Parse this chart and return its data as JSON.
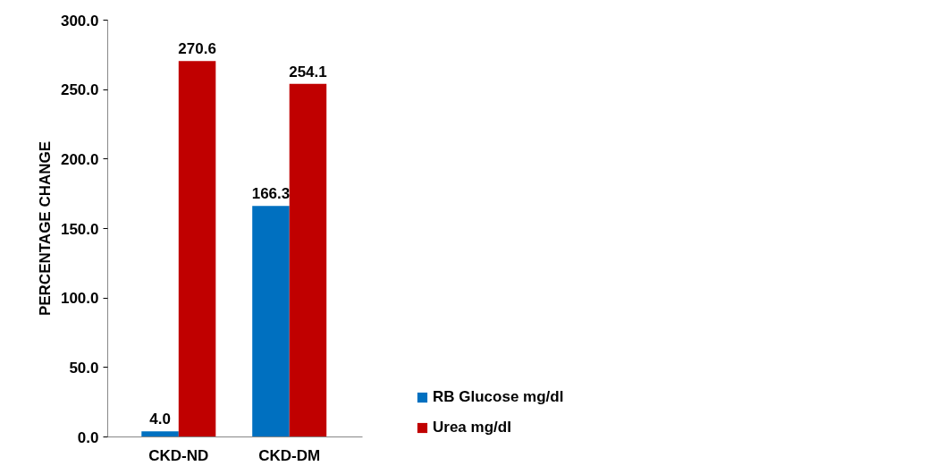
{
  "chart_data": {
    "type": "bar",
    "ylabel": "PERCENTAGE CHANGE",
    "categories": [
      "CKD-ND",
      "CKD-DM"
    ],
    "series": [
      {
        "name": "RB Glucose mg/dl",
        "color": "#0070c0",
        "values": [
          4.0,
          166.3
        ],
        "value_labels": [
          "4.0",
          "166.3"
        ]
      },
      {
        "name": "Urea mg/dI",
        "color": "#c00000",
        "values": [
          270.6,
          254.1
        ],
        "value_labels": [
          "270.6",
          "254.1"
        ]
      }
    ],
    "ylim": [
      0,
      300
    ],
    "yticks": [
      {
        "value": 0,
        "label": "0.0"
      },
      {
        "value": 50,
        "label": "50.0"
      },
      {
        "value": 100,
        "label": "100.0"
      },
      {
        "value": 150,
        "label": "150.0"
      },
      {
        "value": 200,
        "label": "200.0"
      },
      {
        "value": 250,
        "label": "250.0"
      },
      {
        "value": 300,
        "label": "300.0"
      }
    ],
    "legend": "right",
    "grid": false
  }
}
